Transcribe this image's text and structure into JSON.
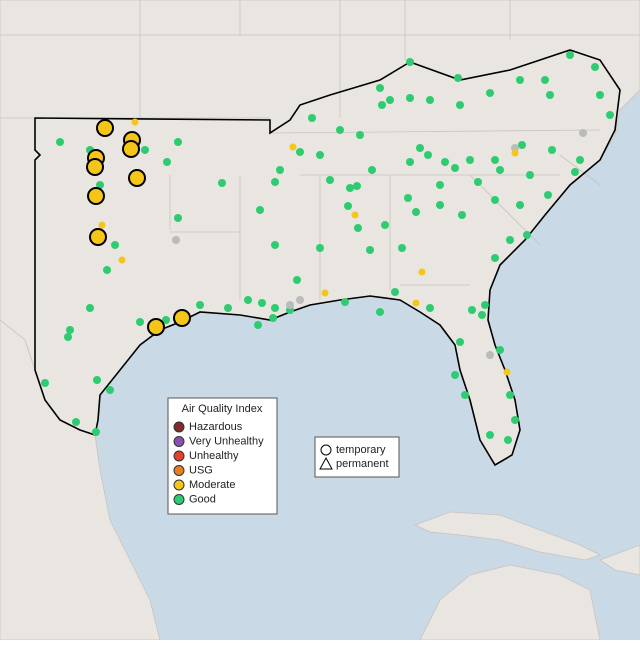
{
  "legend": {
    "title": "Air Quality Index",
    "items": [
      {
        "label": "Hazardous",
        "color": "#7e2c2a"
      },
      {
        "label": "Very Unhealthy",
        "color": "#8b4fb0"
      },
      {
        "label": "Unhealthy",
        "color": "#e0432b"
      },
      {
        "label": "USG",
        "color": "#e67e22"
      },
      {
        "label": "Moderate",
        "color": "#f5c518"
      },
      {
        "label": "Good",
        "color": "#2ecc71"
      }
    ]
  },
  "shape_legend": {
    "items": [
      {
        "label": "temporary"
      },
      {
        "label": "permanent"
      }
    ]
  }
}
